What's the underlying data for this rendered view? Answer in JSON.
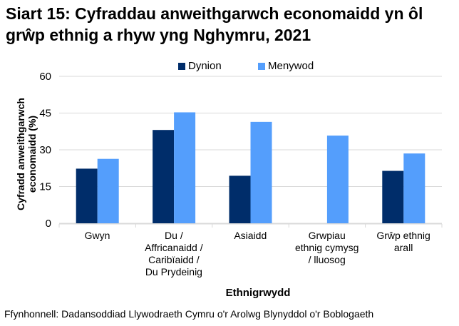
{
  "chart_data": {
    "type": "bar",
    "title": "Siart 15: Cyfraddau anweithgarwch economaidd yn ôl grŵp ethnig a rhyw yng Nghymru, 2021",
    "xlabel": "Ethnigrwydd",
    "ylabel": "Cyfradd anweithgarwch economaidd (%)",
    "categories": [
      "Gwyn",
      "Du / Affricanaidd / Caribïaidd / Du Prydeinig",
      "Asiaidd",
      "Grwpiau ethnig cymysg / lluosog",
      "Grŵp ethnig arall"
    ],
    "category_lines": [
      [
        "Gwyn"
      ],
      [
        "Du /",
        "Affricanaidd /",
        "Caribïaidd /",
        "Du Prydeinig"
      ],
      [
        "Asiaidd"
      ],
      [
        "Grwpiau",
        "ethnig cymysg",
        "/ lluosog"
      ],
      [
        "Grŵp ethnig",
        "arall"
      ]
    ],
    "series": [
      {
        "name": "Dynion",
        "color": "#002d6a",
        "values": [
          22.3,
          38.1,
          19.4,
          null,
          21.4
        ]
      },
      {
        "name": "Menywod",
        "color": "#549efc",
        "values": [
          26.3,
          45.3,
          41.4,
          35.8,
          28.5
        ]
      }
    ],
    "ylim": [
      0,
      60
    ],
    "yticks": [
      "0",
      "15",
      "30",
      "45",
      "60"
    ],
    "grid": true,
    "legend": "top"
  },
  "source": "Ffynhonnell: Dadansoddiad Llywodraeth Cymru o'r Arolwg Blynyddol o'r Boblogaeth"
}
